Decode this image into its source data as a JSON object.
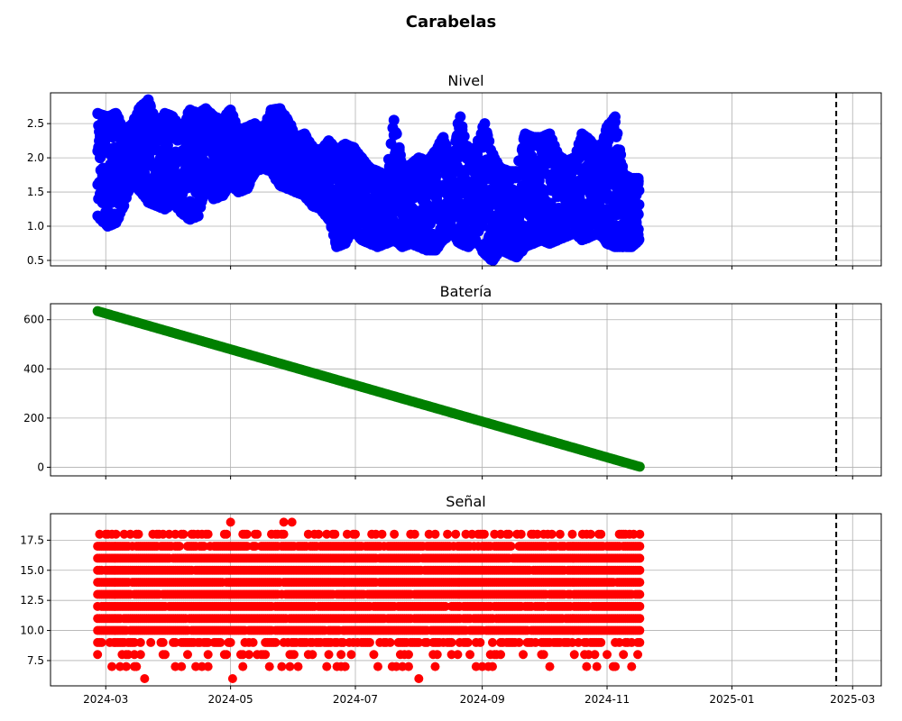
{
  "figure": {
    "title": "Carabelas"
  },
  "chart_data": [
    {
      "type": "scatter",
      "title": "Nivel",
      "color": "#0000ff",
      "ylim": [
        0.42,
        2.95
      ],
      "yticks": [
        0.5,
        1.0,
        1.5,
        2.0,
        2.5
      ],
      "ytick_labels": [
        "0.5",
        "1.0",
        "1.5",
        "2.0",
        "2.5"
      ],
      "grid": true,
      "series": [
        {
          "x": [
            "2024-02-26",
            "2024-03-02",
            "2024-03-06",
            "2024-03-10",
            "2024-03-14",
            "2024-03-18",
            "2024-03-22",
            "2024-03-26",
            "2024-03-30",
            "2024-04-03",
            "2024-04-07",
            "2024-04-11",
            "2024-04-15",
            "2024-04-19",
            "2024-04-23",
            "2024-04-27",
            "2024-05-01",
            "2024-05-05",
            "2024-05-09",
            "2024-05-13",
            "2024-05-17",
            "2024-05-21",
            "2024-05-25",
            "2024-05-29",
            "2024-06-02",
            "2024-06-06",
            "2024-06-10",
            "2024-06-14",
            "2024-06-18",
            "2024-06-22",
            "2024-06-26",
            "2024-06-30",
            "2024-07-04",
            "2024-07-08",
            "2024-07-12",
            "2024-07-16",
            "2024-07-20",
            "2024-07-24",
            "2024-07-28",
            "2024-08-01",
            "2024-08-05",
            "2024-08-09",
            "2024-08-13",
            "2024-08-17",
            "2024-08-21",
            "2024-08-25",
            "2024-08-29",
            "2024-09-02",
            "2024-09-06",
            "2024-09-10",
            "2024-09-14",
            "2024-09-18",
            "2024-09-22",
            "2024-09-26",
            "2024-09-30",
            "2024-10-04",
            "2024-10-08",
            "2024-10-12",
            "2024-10-16",
            "2024-10-20",
            "2024-10-24",
            "2024-10-28",
            "2024-11-01",
            "2024-11-05",
            "2024-11-09",
            "2024-11-13",
            "2024-11-17"
          ],
          "low": [
            1.15,
            1.0,
            1.05,
            1.3,
            1.7,
            1.5,
            1.35,
            1.3,
            1.25,
            1.35,
            1.2,
            1.1,
            1.15,
            1.6,
            1.4,
            1.45,
            1.6,
            1.5,
            1.55,
            1.8,
            1.85,
            1.8,
            1.6,
            1.55,
            1.5,
            1.45,
            1.3,
            1.25,
            1.1,
            0.7,
            0.75,
            0.95,
            0.8,
            0.75,
            0.7,
            0.75,
            0.8,
            0.7,
            0.75,
            0.7,
            0.65,
            0.65,
            0.8,
            0.9,
            0.75,
            0.7,
            0.8,
            0.6,
            0.5,
            0.65,
            0.6,
            0.55,
            0.7,
            0.75,
            0.8,
            0.75,
            0.8,
            0.85,
            0.9,
            0.8,
            0.85,
            0.9,
            0.75,
            0.7,
            0.7,
            0.7,
            0.8
          ],
          "high": [
            2.65,
            2.6,
            2.65,
            2.4,
            2.5,
            2.75,
            2.85,
            2.5,
            2.65,
            2.6,
            2.4,
            2.7,
            2.65,
            2.72,
            2.6,
            2.55,
            2.7,
            2.4,
            2.45,
            2.5,
            2.4,
            2.7,
            2.72,
            2.55,
            2.3,
            2.35,
            2.15,
            2.1,
            2.25,
            2.1,
            2.2,
            2.15,
            2.0,
            1.85,
            1.8,
            1.75,
            2.55,
            1.85,
            1.9,
            2.0,
            1.95,
            2.1,
            2.3,
            1.9,
            2.6,
            2.1,
            2.15,
            2.5,
            2.05,
            1.85,
            1.8,
            1.8,
            2.35,
            2.3,
            2.3,
            2.35,
            2.05,
            1.95,
            2.0,
            2.35,
            2.25,
            2.1,
            2.45,
            2.6,
            1.75,
            1.7,
            1.7
          ]
        }
      ]
    },
    {
      "type": "scatter",
      "title": "Batería",
      "color": "#008000",
      "ylim": [
        -35,
        665
      ],
      "yticks": [
        0,
        200,
        400,
        600
      ],
      "ytick_labels": [
        "0",
        "200",
        "400",
        "600"
      ],
      "grid": true,
      "series": [
        {
          "x": [
            "2024-02-26",
            "2024-11-17"
          ],
          "y": [
            635,
            2
          ]
        }
      ]
    },
    {
      "type": "scatter",
      "title": "Señal",
      "color": "#ff0000",
      "ylim": [
        5.4,
        19.7
      ],
      "yticks": [
        7.5,
        10.0,
        12.5,
        15.0,
        17.5
      ],
      "ytick_labels": [
        "7.5",
        "10.0",
        "12.5",
        "15.0",
        "17.5"
      ],
      "grid": true,
      "series": [
        {
          "x_range": [
            "2024-02-26",
            "2024-11-17"
          ],
          "levels": [
            7,
            8,
            9,
            10,
            11,
            12,
            13,
            14,
            15,
            16,
            17,
            18
          ],
          "outliers": [
            {
              "x": "2024-03-20",
              "y": 6
            },
            {
              "x": "2024-05-02",
              "y": 6
            },
            {
              "x": "2024-05-01",
              "y": 19
            },
            {
              "x": "2024-05-27",
              "y": 19
            },
            {
              "x": "2024-05-31",
              "y": 19
            },
            {
              "x": "2024-08-01",
              "y": 6
            }
          ]
        }
      ]
    }
  ],
  "x_axis": {
    "range": [
      "2024-02-03",
      "2025-03-15"
    ],
    "ticks": [
      "2024-03-01",
      "2024-05-01",
      "2024-07-01",
      "2024-09-01",
      "2024-11-01",
      "2025-01-01",
      "2025-03-01"
    ],
    "tick_labels": [
      "2024-03",
      "2024-05",
      "2024-07",
      "2024-09",
      "2024-11",
      "2025-01",
      "2025-03"
    ],
    "reference_line": "2025-02-21"
  }
}
